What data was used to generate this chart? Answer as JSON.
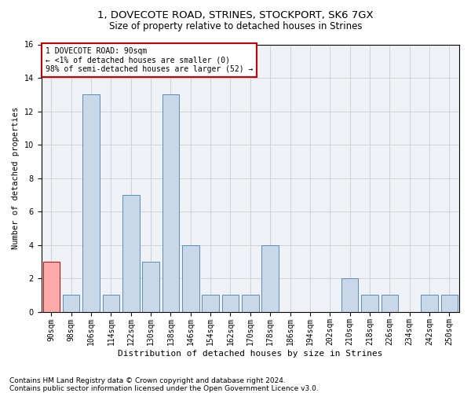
{
  "title1": "1, DOVECOTE ROAD, STRINES, STOCKPORT, SK6 7GX",
  "title2": "Size of property relative to detached houses in Strines",
  "xlabel": "Distribution of detached houses by size in Strines",
  "ylabel": "Number of detached properties",
  "categories": [
    "90sqm",
    "98sqm",
    "106sqm",
    "114sqm",
    "122sqm",
    "130sqm",
    "138sqm",
    "146sqm",
    "154sqm",
    "162sqm",
    "170sqm",
    "178sqm",
    "186sqm",
    "194sqm",
    "202sqm",
    "210sqm",
    "218sqm",
    "226sqm",
    "234sqm",
    "242sqm",
    "250sqm"
  ],
  "values": [
    3,
    1,
    13,
    1,
    7,
    3,
    13,
    4,
    1,
    1,
    1,
    4,
    0,
    0,
    0,
    2,
    1,
    1,
    0,
    1,
    1
  ],
  "bar_color": "#c8d8e8",
  "bar_edge_color": "#5b8db8",
  "highlight_bar_index": 0,
  "highlight_bar_color": "#ffaaaa",
  "highlight_bar_edge_color": "#cc0000",
  "annotation_text": "1 DOVECOTE ROAD: 90sqm\n← <1% of detached houses are smaller (0)\n98% of semi-detached houses are larger (52) →",
  "annotation_box_edge_color": "#cc0000",
  "ylim": [
    0,
    16
  ],
  "yticks": [
    0,
    2,
    4,
    6,
    8,
    10,
    12,
    14,
    16
  ],
  "footer1": "Contains HM Land Registry data © Crown copyright and database right 2024.",
  "footer2": "Contains public sector information licensed under the Open Government Licence v3.0.",
  "grid_color": "#cccccc",
  "bg_color": "#eef2f7",
  "title1_fontsize": 9.5,
  "title2_fontsize": 8.5,
  "xlabel_fontsize": 8,
  "ylabel_fontsize": 7.5,
  "tick_fontsize": 7,
  "annotation_fontsize": 7,
  "footer_fontsize": 6.5
}
